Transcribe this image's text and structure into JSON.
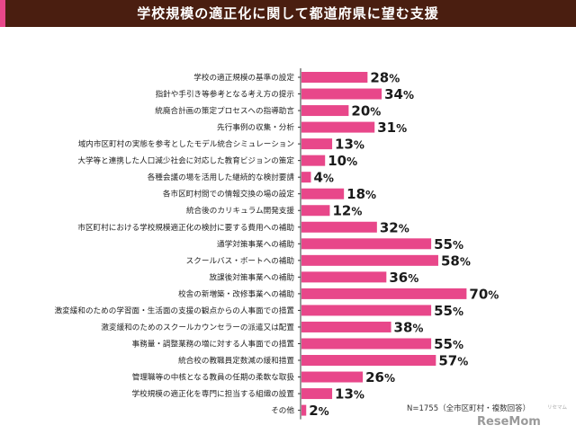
{
  "title": "学校規模の適正化に関して都道府県に望む支援",
  "note": "N=1755（全市区町村・複数回答）",
  "watermark": {
    "brand": "ReseMom",
    "sub": "リセマム"
  },
  "colors": {
    "bar": "#e8478a",
    "title_bg": "#4a1e10",
    "axis": "#333333"
  },
  "chart_data": {
    "type": "bar",
    "orientation": "horizontal",
    "title": "学校規模の適正化に関して都道府県に望む支援",
    "unit": "%",
    "xlim": [
      0,
      100
    ],
    "grid": false,
    "categories": [
      "学校の適正規模の基準の設定",
      "指針や手引き等参考となる考え方の提示",
      "統廃合計画の策定プロセスへの指導助言",
      "先行事例の収集・分析",
      "域内市区町村の実態を参考としたモデル統合シミュレーション",
      "大学等と連携した人口減少社会に対応した教育ビジョンの策定",
      "各種会議の場を活用した継続的な検討要請",
      "各市区町村間での情報交換の場の設定",
      "統合後のカリキュラム開発支援",
      "市区町村における学校規模適正化の検討に要する費用への補助",
      "通学対策事業への補助",
      "スクールバス・ボートへの補助",
      "放課後対策事業への補助",
      "校舎の新増築・改修事業への補助",
      "激変緩和のための学習面・生活面の支援の観点からの人事面での措置",
      "激変緩和のためのスクールカウンセラーの派遣又は配置",
      "事務量・調整業務の増に対する人事面での措置",
      "統合校の教職員定数減の緩和措置",
      "管理職等の中核となる教員の任期の柔軟な取扱",
      "学校規模の適正化を専門に担当する組織の設置",
      "その他"
    ],
    "values": [
      28,
      34,
      20,
      31,
      13,
      10,
      4,
      18,
      12,
      32,
      55,
      58,
      36,
      70,
      55,
      38,
      55,
      57,
      26,
      13,
      2
    ]
  }
}
